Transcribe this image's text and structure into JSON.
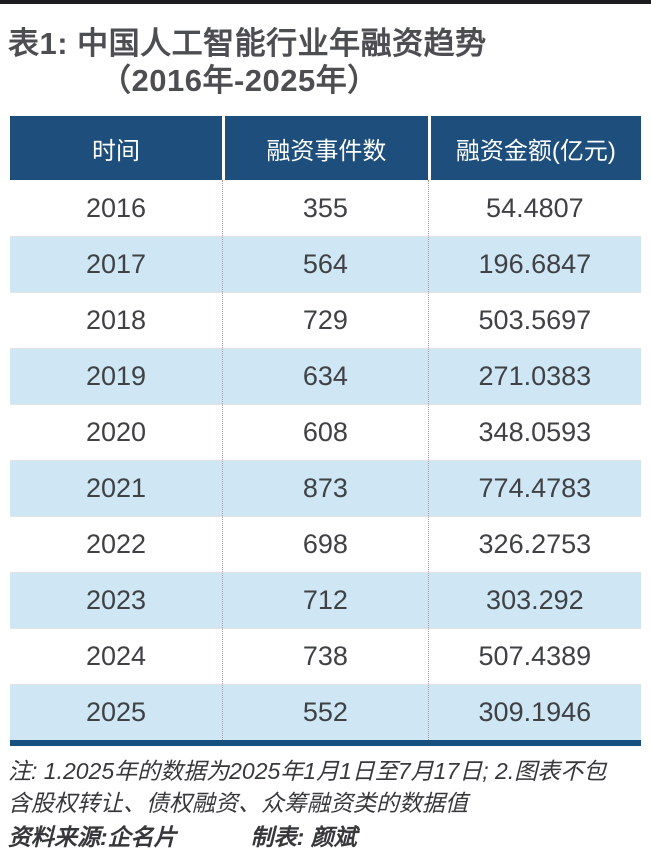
{
  "header": {
    "title_line1": "表1: 中国人工智能行业年融资趋势",
    "title_line2": "（2016年-2025年）"
  },
  "table": {
    "headers": [
      "时间",
      "融资事件数",
      "融资金额(亿元)"
    ],
    "rows": [
      [
        "2016",
        "355",
        "54.4807"
      ],
      [
        "2017",
        "564",
        "196.6847"
      ],
      [
        "2018",
        "729",
        "503.5697"
      ],
      [
        "2019",
        "634",
        "271.0383"
      ],
      [
        "2020",
        "608",
        "348.0593"
      ],
      [
        "2021",
        "873",
        "774.4783"
      ],
      [
        "2022",
        "698",
        "326.2753"
      ],
      [
        "2023",
        "712",
        "303.292"
      ],
      [
        "2024",
        "738",
        "507.4389"
      ],
      [
        "2025",
        "552",
        "309.1946"
      ]
    ]
  },
  "notes": {
    "line1": "注: 1.2025年的数据为2025年1月1日至7月17日; 2.图表不包",
    "line2": "含股权转让、债权融资、众筹融资类的数据值",
    "source": "资料来源:企名片",
    "credit": "制表: 颜斌"
  },
  "colors": {
    "header_bg": "#1d4e7c",
    "stripe_bg": "#cfe6f4",
    "bottom_rule": "#16507f",
    "title_text": "#4d4e52",
    "body_text": "#3f4145",
    "top_edge": "#1d1d20"
  },
  "chart_data": {
    "type": "table",
    "title": "表1: 中国人工智能行业年融资趋势（2016年-2025年）",
    "columns": [
      "时间",
      "融资事件数",
      "融资金额(亿元)"
    ],
    "categories": [
      "2016",
      "2017",
      "2018",
      "2019",
      "2020",
      "2021",
      "2022",
      "2023",
      "2024",
      "2025"
    ],
    "series": [
      {
        "name": "融资事件数",
        "values": [
          355,
          564,
          729,
          634,
          608,
          873,
          698,
          712,
          738,
          552
        ]
      },
      {
        "name": "融资金额(亿元)",
        "values": [
          54.4807,
          196.6847,
          503.5697,
          271.0383,
          348.0593,
          774.4783,
          326.2753,
          303.292,
          507.4389,
          309.1946
        ]
      }
    ],
    "annotations": [
      "注: 1.2025年的数据为2025年1月1日至7月17日; 2.图表不包含股权转让、债权融资、众筹融资类的数据值",
      "资料来源:企名片",
      "制表: 颜斌"
    ],
    "layout": {
      "striped_rows": true,
      "stripe_start_category": "2017",
      "header_style": "dark-blue-white-text"
    }
  }
}
